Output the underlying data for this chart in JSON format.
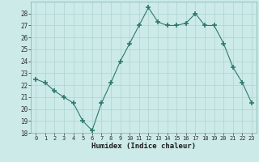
{
  "x": [
    0,
    1,
    2,
    3,
    4,
    5,
    6,
    7,
    8,
    9,
    10,
    11,
    12,
    13,
    14,
    15,
    16,
    17,
    18,
    19,
    20,
    21,
    22,
    23
  ],
  "y": [
    22.5,
    22.2,
    21.5,
    21.0,
    20.5,
    19.0,
    18.2,
    20.5,
    22.2,
    24.0,
    25.5,
    27.0,
    28.5,
    27.3,
    27.0,
    27.0,
    27.2,
    28.0,
    27.0,
    27.0,
    25.5,
    23.5,
    22.2,
    20.5
  ],
  "xlabel": "Humidex (Indice chaleur)",
  "ylim": [
    18,
    29
  ],
  "xlim": [
    -0.5,
    23.5
  ],
  "yticks": [
    18,
    19,
    20,
    21,
    22,
    23,
    24,
    25,
    26,
    27,
    28
  ],
  "xticks": [
    0,
    1,
    2,
    3,
    4,
    5,
    6,
    7,
    8,
    9,
    10,
    11,
    12,
    13,
    14,
    15,
    16,
    17,
    18,
    19,
    20,
    21,
    22,
    23
  ],
  "line_color": "#2d7a6b",
  "marker": "+",
  "marker_size": 5,
  "bg_color": "#cceae8",
  "grid_color": "#afd4cf",
  "spine_color": "#7ab0aa"
}
